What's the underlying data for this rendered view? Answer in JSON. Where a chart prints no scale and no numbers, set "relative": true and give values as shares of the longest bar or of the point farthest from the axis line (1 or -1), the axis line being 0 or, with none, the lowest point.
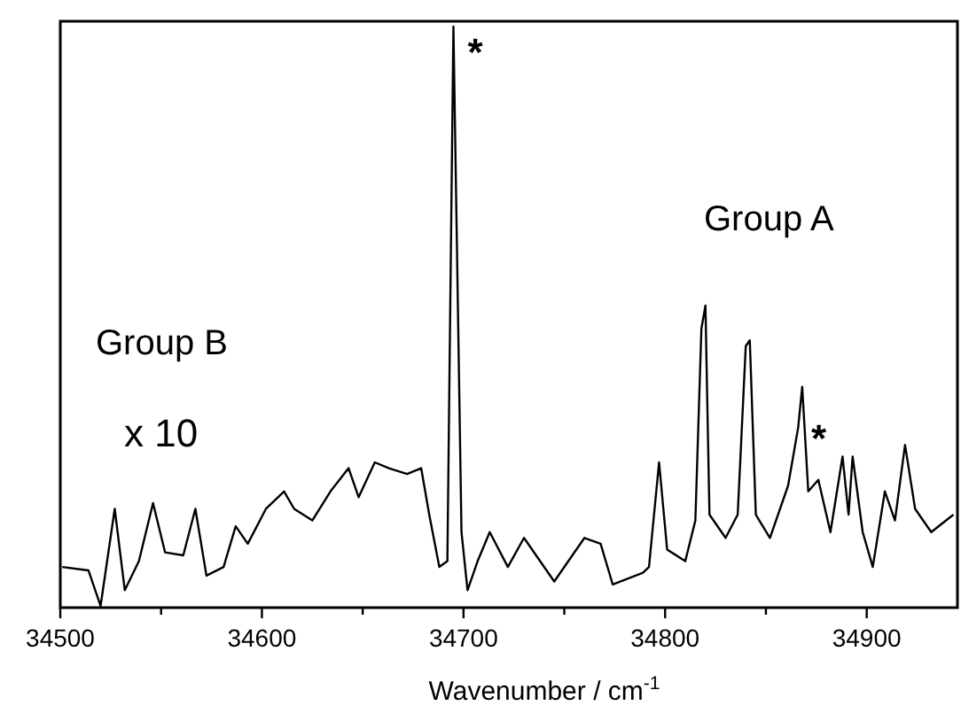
{
  "chart_data": {
    "type": "line",
    "relative": true,
    "xlabel": "Wavenumber / cm$^{-1}$",
    "xlim": [
      34500,
      34945
    ],
    "xticks": [
      34500,
      {
        "value": 34550,
        "label": null
      },
      34600,
      {
        "value": 34650,
        "label": null
      },
      34700,
      {
        "value": 34750,
        "label": null
      },
      34800,
      {
        "value": 34850,
        "label": null
      },
      34900
    ],
    "tick_labels": "x",
    "grid": false,
    "marker": "none",
    "line_style": "solid",
    "series": [
      {
        "color": "#000000",
        "x": [
          34501,
          34514,
          34520,
          34527,
          34532,
          34539,
          34546,
          34552,
          34561,
          34567,
          34572.5,
          34581,
          34587,
          34593,
          34602,
          34611,
          34616,
          34625,
          34634,
          34643,
          34648,
          34656,
          34663,
          34672,
          34679,
          34683,
          34688,
          34692,
          34695,
          34699,
          34702,
          34707,
          34713,
          34722,
          34730,
          34745,
          34760,
          34768,
          34774,
          34789,
          34792,
          34797,
          34801,
          34810,
          34815,
          34818,
          34820,
          34822,
          34830,
          34836,
          34840,
          34842,
          34845,
          34852,
          34861,
          34866,
          34868,
          34871,
          34876,
          34882,
          34888,
          34891,
          34893,
          34898,
          34903,
          34909,
          34914,
          34919,
          34924,
          34932,
          34943
        ],
        "values": [
          0.07,
          0.064,
          0.003,
          0.17,
          0.03,
          0.08,
          0.18,
          0.095,
          0.09,
          0.17,
          0.055,
          0.07,
          0.14,
          0.11,
          0.17,
          0.2,
          0.17,
          0.15,
          0.2,
          0.24,
          0.19,
          0.25,
          0.24,
          0.23,
          0.24,
          0.16,
          0.07,
          0.08,
          1.0,
          0.13,
          0.03,
          0.08,
          0.13,
          0.07,
          0.12,
          0.045,
          0.12,
          0.11,
          0.04,
          0.06,
          0.07,
          0.25,
          0.1,
          0.08,
          0.15,
          0.48,
          0.52,
          0.16,
          0.12,
          0.16,
          0.45,
          0.46,
          0.16,
          0.12,
          0.21,
          0.31,
          0.38,
          0.2,
          0.22,
          0.13,
          0.26,
          0.16,
          0.26,
          0.13,
          0.07,
          0.2,
          0.15,
          0.28,
          0.17,
          0.13,
          0.16
        ]
      }
    ],
    "annotations": [
      "Group B",
      "x 10",
      "Group A",
      {
        "text": "*",
        "x": 34695,
        "y": 1.0
      },
      {
        "text": "*",
        "x": 34876,
        "y": 0.22
      }
    ]
  }
}
